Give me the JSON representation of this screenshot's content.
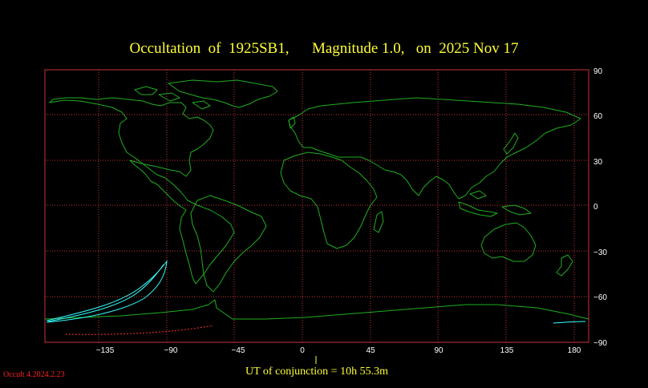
{
  "title": "Occultation  of  1925SB1,      Magnitude 1.0,   on  2025 Nov 17",
  "ut_label": "UT of conjunction = 10h 55.3m",
  "version_label": "Occult 4.2024.2.23",
  "x_axis_ticks": [
    "−135",
    "−90",
    "−45",
    "0",
    "45",
    "90",
    "135",
    "180"
  ],
  "y_axis_ticks": [
    "90",
    "60",
    "30",
    "0",
    "−30",
    "−60",
    "−90"
  ],
  "colors": {
    "background": "#000000",
    "title": "#ffff33",
    "grid": "#c83232",
    "coastline": "#1fae1f",
    "shadow_path": "#33ffff",
    "shadow_path_dotted": "#ff3030",
    "ticks": "#ffffff"
  }
}
